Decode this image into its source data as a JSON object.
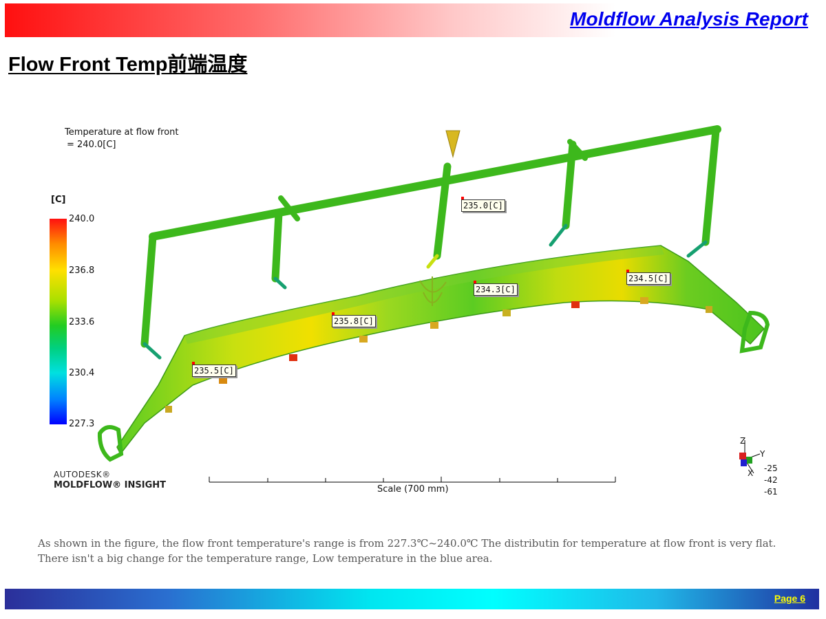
{
  "header": {
    "title": "Moldflow Analysis Report"
  },
  "section": {
    "title": "Flow Front Temp前端温度"
  },
  "result": {
    "label_line1": "Temperature at flow front",
    "label_line2": "= 240.0[C]",
    "unit": "[C]",
    "legend": [
      "240.0",
      "236.8",
      "233.6",
      "230.4",
      "227.3"
    ],
    "probes": [
      "235.0[C]",
      "234.3[C]",
      "235.8[C]",
      "234.5[C]",
      "235.5[C]"
    ],
    "scale_label": "Scale (700 mm)",
    "axis_labels": [
      "Z",
      "Y",
      "X"
    ],
    "view_angles": [
      "-25",
      "-42",
      "-61"
    ],
    "branding_line1": "AUTODESK®",
    "branding_line2": "MOLDFLOW® INSIGHT"
  },
  "caption": {
    "text": "As shown in the figure, the flow front temperature's range is from 227.3℃~240.0℃ The distributin for temperature at flow front is very flat. There isn't a big change for the temperature range, Low temperature in the blue area."
  },
  "footer": {
    "page": "Page  6"
  },
  "colors": {
    "title_blue": "#0000ee",
    "runner_green": "#3db81c",
    "part_yellow": "#e8e000",
    "part_green": "#55cc22",
    "hot_red": "#ff2000",
    "page_yellow": "#ffff00"
  }
}
